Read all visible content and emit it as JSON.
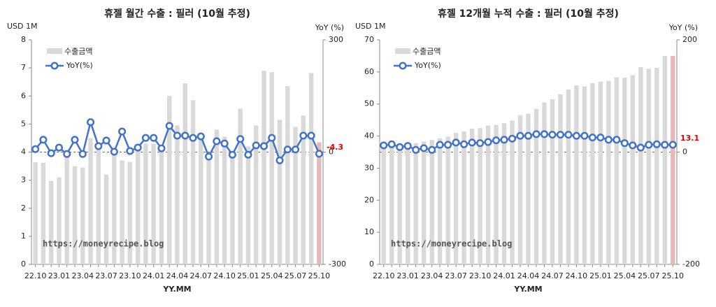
{
  "chart_data": [
    {
      "type": "combo",
      "title": "휴젤 월간 수출 : 필러 (10월 추정)",
      "ylabel": "USD 1M",
      "y2label": "YoY (%)",
      "xlabel": "YY.MM",
      "watermark": "https://moneyrecipe.blog",
      "categories": [
        "22.10",
        null,
        null,
        "23.01",
        null,
        null,
        "23.04",
        null,
        null,
        "23.07",
        null,
        null,
        "23.10",
        null,
        null,
        "24.01",
        null,
        null,
        "24.04",
        null,
        null,
        "24.07",
        null,
        null,
        "24.10",
        null,
        null,
        "25.01",
        null,
        null,
        "25.04",
        null,
        null,
        "25.07",
        null,
        null,
        "25.10"
      ],
      "series": [
        {
          "name": "수출금액",
          "color": "#d9d9d9",
          "highlight_color": "#e6b8b7",
          "values": [
            3.64,
            3.62,
            2.97,
            3.1,
            3.9,
            3.5,
            3.45,
            4.5,
            4.1,
            3.2,
            4.0,
            3.7,
            3.65,
            4.05,
            4.3,
            4.3,
            4.2,
            6.0,
            4.95,
            6.45,
            5.85,
            4.5,
            3.7,
            4.8,
            4.55,
            3.95,
            5.55,
            4.2,
            4.95,
            6.9,
            6.85,
            5.15,
            6.35,
            4.9,
            5.3,
            6.82,
            4.35
          ]
        },
        {
          "name": "YoY(%)",
          "color": "#4472c4",
          "axis": "y2",
          "values": [
            8,
            33,
            -3,
            12,
            -5,
            33,
            -5,
            80,
            16,
            31,
            1,
            55,
            3,
            12,
            38,
            38,
            10,
            70,
            44,
            44,
            38,
            42,
            -12,
            29,
            23,
            -7,
            35,
            -7,
            18,
            16,
            38,
            -22,
            7,
            7,
            44,
            44,
            -4.3
          ]
        }
      ],
      "ylim": [
        0,
        8
      ],
      "yticks": [
        0,
        1,
        2,
        3,
        4,
        5,
        6,
        7,
        8
      ],
      "y2lim": [
        -300,
        300
      ],
      "y2ticks": [
        -300,
        0,
        300
      ]
    },
    {
      "type": "combo",
      "title": "휴젤 12개월 누적 수출 : 필러 (10월 추정)",
      "ylabel": "USD 1M",
      "y2label": "YoY (%)",
      "xlabel": "YY.MM",
      "watermark": "https://moneyrecipe.blog",
      "categories": [
        "22.10",
        null,
        null,
        "23.01",
        null,
        null,
        "23.04",
        null,
        null,
        "23.07",
        null,
        null,
        "23.10",
        null,
        null,
        "24.01",
        null,
        null,
        "24.04",
        null,
        null,
        "24.07",
        null,
        null,
        "24.10",
        null,
        null,
        "25.01",
        null,
        null,
        "25.04",
        null,
        null,
        "25.07",
        null,
        null,
        "25.10"
      ],
      "series": [
        {
          "name": "수출금액",
          "color": "#d9d9d9",
          "highlight_color": "#e6b8b7",
          "values": [
            36.8,
            37,
            37.2,
            37.5,
            37.8,
            38.3,
            38.8,
            39.3,
            39.8,
            41,
            41.5,
            42.3,
            42.5,
            43.3,
            43.5,
            44,
            44.8,
            46.5,
            47,
            48.5,
            50.5,
            51.5,
            53,
            54.5,
            55.8,
            55.5,
            56.5,
            57,
            57.2,
            58.3,
            58.2,
            59,
            61.5,
            61,
            61.3,
            65,
            65
          ]
        },
        {
          "name": "YoY(%)",
          "color": "#4472c4",
          "axis": "y2",
          "values": [
            12,
            14,
            9,
            11,
            4,
            7,
            4,
            13,
            13,
            17,
            14,
            17,
            16,
            18,
            21,
            22,
            24,
            29,
            29,
            32,
            32,
            31,
            31,
            31,
            29,
            29,
            26,
            26,
            22,
            22,
            16,
            12,
            8,
            13,
            14,
            13,
            13.1
          ]
        }
      ],
      "ylim": [
        0,
        70
      ],
      "yticks": [
        0,
        10,
        20,
        30,
        40,
        50,
        60,
        70
      ],
      "y2lim": [
        -200,
        200
      ],
      "y2ticks": [
        -200,
        0,
        200
      ]
    }
  ]
}
